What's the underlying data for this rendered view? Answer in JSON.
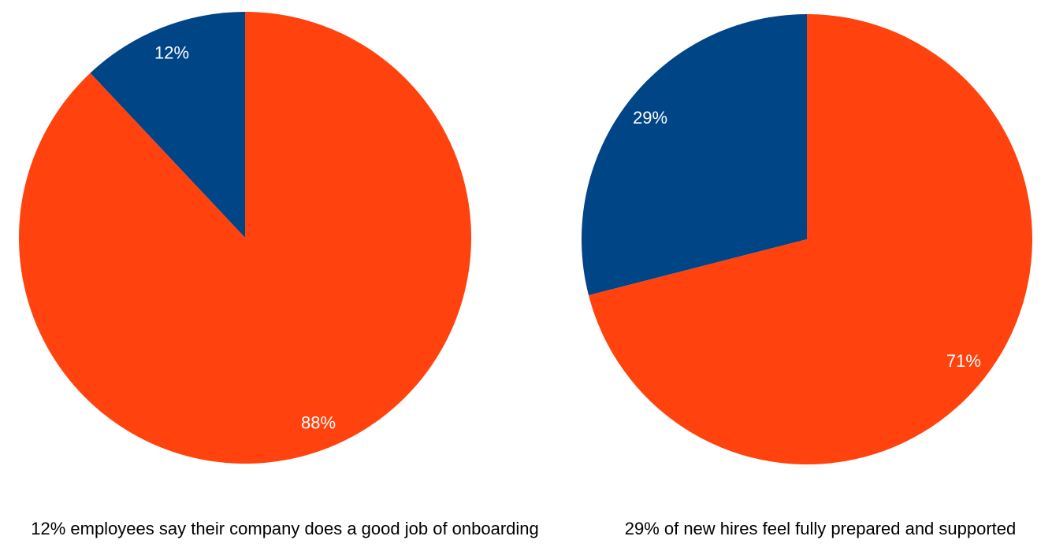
{
  "page": {
    "background_color": "#ffffff",
    "text_color": "#000000"
  },
  "chart_data": [
    {
      "type": "pie",
      "caption": "12% employees say their company does a good job of onboarding",
      "slice_names": [
        "highlighted-share",
        "remainder"
      ],
      "values": [
        12,
        88
      ],
      "labels": [
        "12%",
        "88%"
      ],
      "colors": [
        "#004586",
        "#FF420E"
      ],
      "label_color": "#ffffff",
      "start_angle_deg": 90,
      "direction": "counterclockwise",
      "label_radius_frac": 0.88,
      "legend": "none",
      "grid": "off"
    },
    {
      "type": "pie",
      "caption": "29% of new hires feel fully prepared and supported",
      "slice_names": [
        "highlighted-share",
        "remainder"
      ],
      "values": [
        29,
        71
      ],
      "labels": [
        "29%",
        "71%"
      ],
      "colors": [
        "#004586",
        "#FF420E"
      ],
      "label_color": "#ffffff",
      "start_angle_deg": 90,
      "direction": "counterclockwise",
      "label_radius_frac": 0.88,
      "legend": "none",
      "grid": "off"
    }
  ]
}
